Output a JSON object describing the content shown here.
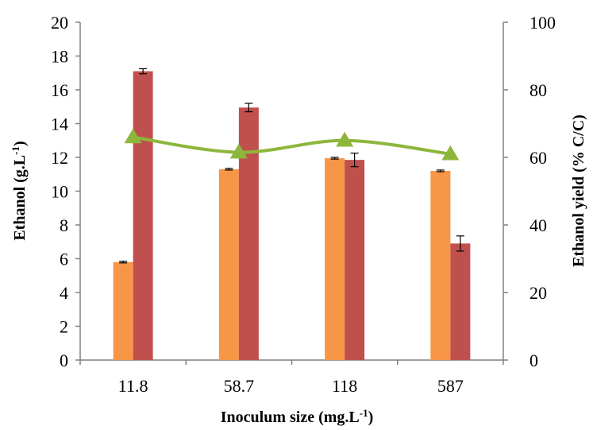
{
  "chart_data": {
    "type": "bar",
    "categories": [
      "11.8",
      "58.7",
      "118",
      "587"
    ],
    "series": [
      {
        "values": [
          5.8,
          11.3,
          11.95,
          11.2
        ],
        "errors": [
          0.05,
          0.05,
          0.05,
          0.05
        ],
        "color": "#f79646",
        "axis": "left",
        "kind": "bar"
      },
      {
        "values": [
          17.1,
          14.95,
          11.85,
          6.9
        ],
        "errors": [
          0.15,
          0.25,
          0.4,
          0.45
        ],
        "color": "#c0504d",
        "axis": "left",
        "kind": "bar"
      },
      {
        "values": [
          66,
          61.5,
          65,
          61
        ],
        "color": "#8db63c",
        "axis": "right",
        "kind": "line",
        "marker": "triangle"
      }
    ],
    "xlabel": {
      "main": "Inoculum size (mg.L",
      "sup": "-1",
      "end": ")"
    },
    "ylabel": {
      "main": "Ethanol (g.L",
      "sup": "-1",
      "end": ")"
    },
    "y2label": "Ethanol yield (% C/C)",
    "ylim": [
      0,
      20
    ],
    "y2lim": [
      0,
      100
    ],
    "yticks": [
      "0",
      "2",
      "4",
      "6",
      "8",
      "10",
      "12",
      "14",
      "16",
      "18",
      "20"
    ],
    "y2ticks": [
      "0",
      "20",
      "40",
      "60",
      "80",
      "100"
    ],
    "grid": false,
    "legend": "none"
  }
}
